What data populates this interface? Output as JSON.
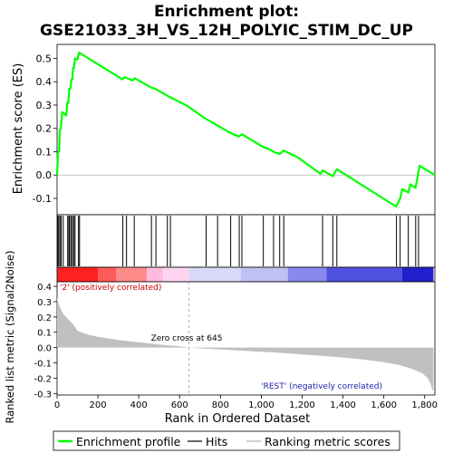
{
  "chart_data": {
    "type": "line",
    "title": "Enrichment plot:",
    "subtitle": "GSE21033_3H_VS_12H_POLYIC_STIM_DC_UP",
    "es_panel": {
      "ylabel": "Enrichment score (ES)",
      "ylim": [
        -0.17,
        0.56
      ],
      "yticks": [
        -0.1,
        0.0,
        0.1,
        0.2,
        0.3,
        0.4,
        0.5
      ],
      "ytick_labels": [
        "-0.1",
        "0.0",
        "0.1",
        "0.2",
        "0.3",
        "0.4",
        "0.5"
      ],
      "color": "#00ff00",
      "points": [
        [
          0,
          0.0
        ],
        [
          5,
          0.1
        ],
        [
          10,
          0.1
        ],
        [
          13,
          0.19
        ],
        [
          18,
          0.2
        ],
        [
          25,
          0.27
        ],
        [
          45,
          0.255
        ],
        [
          50,
          0.31
        ],
        [
          55,
          0.31
        ],
        [
          60,
          0.37
        ],
        [
          65,
          0.37
        ],
        [
          70,
          0.41
        ],
        [
          75,
          0.41
        ],
        [
          78,
          0.46
        ],
        [
          83,
          0.46
        ],
        [
          88,
          0.5
        ],
        [
          100,
          0.495
        ],
        [
          108,
          0.525
        ],
        [
          320,
          0.41
        ],
        [
          330,
          0.42
        ],
        [
          370,
          0.405
        ],
        [
          380,
          0.415
        ],
        [
          460,
          0.375
        ],
        [
          480,
          0.37
        ],
        [
          520,
          0.35
        ],
        [
          550,
          0.335
        ],
        [
          640,
          0.295
        ],
        [
          720,
          0.245
        ],
        [
          780,
          0.215
        ],
        [
          850,
          0.18
        ],
        [
          890,
          0.165
        ],
        [
          905,
          0.175
        ],
        [
          990,
          0.13
        ],
        [
          1010,
          0.12
        ],
        [
          1040,
          0.11
        ],
        [
          1060,
          0.1
        ],
        [
          1090,
          0.09
        ],
        [
          1110,
          0.105
        ],
        [
          1180,
          0.075
        ],
        [
          1290,
          0.005
        ],
        [
          1300,
          0.02
        ],
        [
          1350,
          -0.005
        ],
        [
          1370,
          0.025
        ],
        [
          1660,
          -0.135
        ],
        [
          1680,
          -0.1
        ],
        [
          1690,
          -0.06
        ],
        [
          1720,
          -0.075
        ],
        [
          1730,
          -0.04
        ],
        [
          1755,
          -0.055
        ],
        [
          1765,
          -0.01
        ],
        [
          1775,
          0.04
        ],
        [
          1850,
          0.0
        ]
      ]
    },
    "hits": [
      3,
      8,
      14,
      20,
      30,
      52,
      58,
      62,
      70,
      75,
      82,
      88,
      105,
      110,
      322,
      340,
      378,
      462,
      484,
      540,
      555,
      730,
      786,
      850,
      892,
      905,
      1010,
      1060,
      1090,
      1110,
      1300,
      1350,
      1370,
      1662,
      1680,
      1720,
      1756,
      1770
    ],
    "metric_panel": {
      "ylabel": "Ranked list metric (Signal2Noise)",
      "xlabel": "Rank in Ordered Dataset",
      "ylim": [
        -0.31,
        0.43
      ],
      "yticks": [
        -0.3,
        -0.2,
        -0.1,
        0.0,
        0.1,
        0.2,
        0.3,
        0.4
      ],
      "ytick_labels": [
        "-0.3",
        "-0.2",
        "-0.1",
        "0.0",
        "0.1",
        "0.2",
        "0.3",
        "0.4"
      ],
      "fill_color": "#c0c0c0",
      "points": [
        [
          0,
          0.33
        ],
        [
          5,
          0.3
        ],
        [
          15,
          0.26
        ],
        [
          30,
          0.22
        ],
        [
          50,
          0.19
        ],
        [
          80,
          0.15
        ],
        [
          100,
          0.11
        ],
        [
          150,
          0.085
        ],
        [
          200,
          0.07
        ],
        [
          300,
          0.05
        ],
        [
          400,
          0.035
        ],
        [
          500,
          0.02
        ],
        [
          600,
          0.008
        ],
        [
          645,
          0.0
        ],
        [
          700,
          -0.005
        ],
        [
          800,
          -0.012
        ],
        [
          900,
          -0.02
        ],
        [
          1000,
          -0.027
        ],
        [
          1100,
          -0.035
        ],
        [
          1200,
          -0.045
        ],
        [
          1300,
          -0.055
        ],
        [
          1400,
          -0.065
        ],
        [
          1500,
          -0.078
        ],
        [
          1600,
          -0.095
        ],
        [
          1680,
          -0.115
        ],
        [
          1740,
          -0.14
        ],
        [
          1790,
          -0.17
        ],
        [
          1815,
          -0.2
        ],
        [
          1830,
          -0.24
        ],
        [
          1838,
          -0.28
        ],
        [
          1843,
          -0.28
        ]
      ],
      "zero_cross_label": "Zero cross at 645",
      "zero_cross_rank": 645,
      "pos_label": "'2' (positively correlated)",
      "neg_label": "'REST' (negatively correlated)"
    },
    "xlim": [
      0,
      1850
    ],
    "xticks": [
      0,
      200,
      400,
      600,
      800,
      1000,
      1200,
      1400,
      1600,
      1800
    ],
    "xtick_labels": [
      "0",
      "200",
      "400",
      "600",
      "800",
      "1,000",
      "1,200",
      "1,400",
      "1,600",
      "1,800"
    ],
    "n_genes": 1843,
    "heat_segments": [
      {
        "end": 200,
        "color": "#ff2020"
      },
      {
        "end": 290,
        "color": "#ff5a5a"
      },
      {
        "end": 440,
        "color": "#ff8a8a"
      },
      {
        "end": 520,
        "color": "#ffbbdd"
      },
      {
        "end": 645,
        "color": "#ffd4f0"
      },
      {
        "end": 900,
        "color": "#d8d8f8"
      },
      {
        "end": 1130,
        "color": "#c0c0f4"
      },
      {
        "end": 1320,
        "color": "#8888ee"
      },
      {
        "end": 1690,
        "color": "#5050e0"
      },
      {
        "end": 1843,
        "color": "#2020cc"
      }
    ],
    "legend": [
      {
        "label": "Enrichment profile",
        "color": "#00ff00"
      },
      {
        "label": "Hits",
        "color": "#000000"
      },
      {
        "label": "Ranking metric scores",
        "color": "#c0c0c0"
      }
    ]
  }
}
